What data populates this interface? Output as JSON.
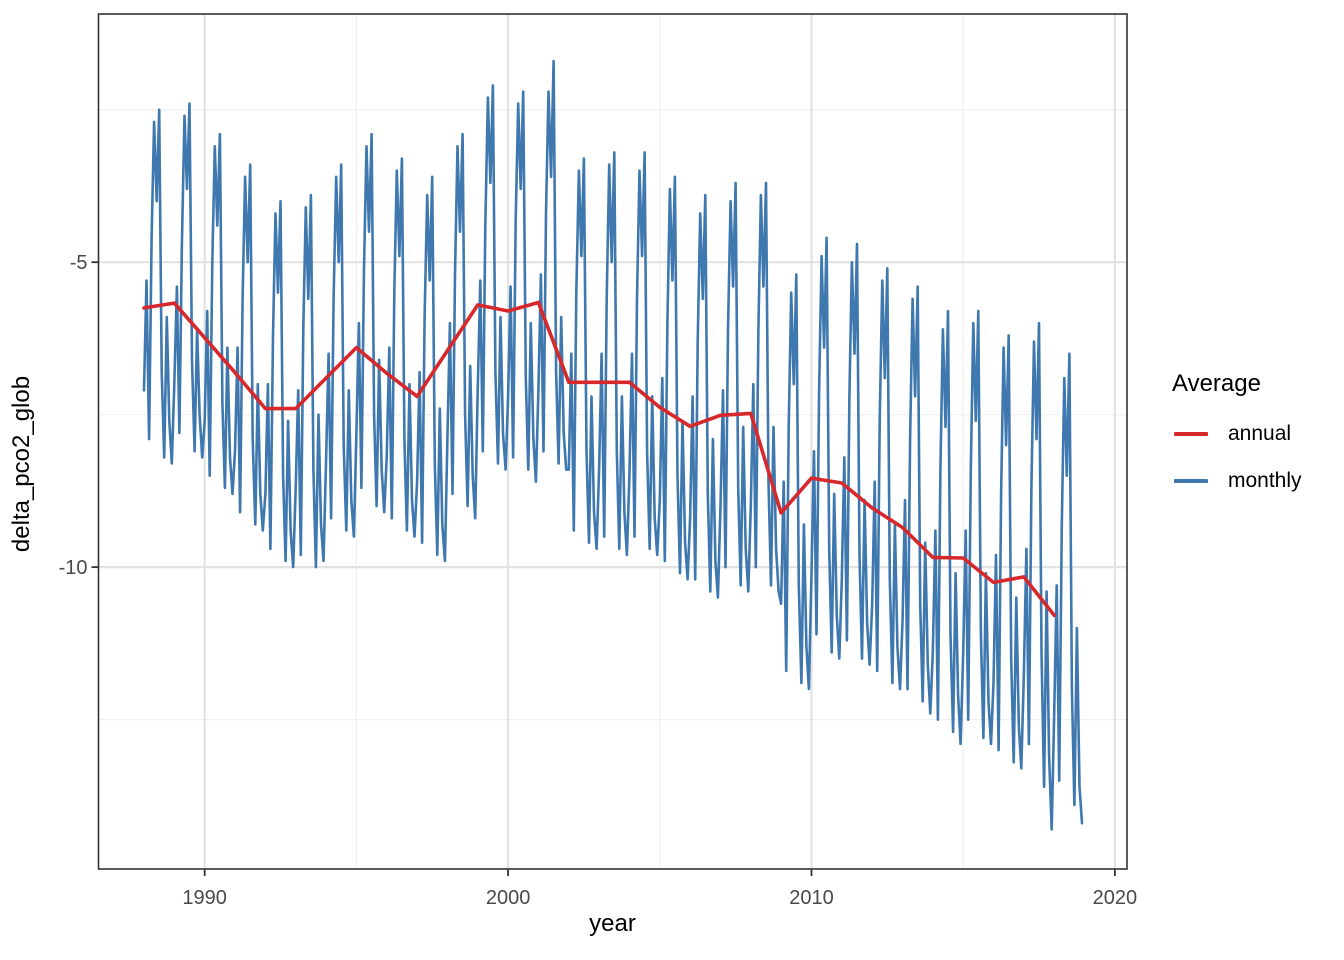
{
  "figure_type": "ggplot-line-chart",
  "chart_data": {
    "type": "line",
    "title": "",
    "xlabel": "year",
    "ylabel": "delta_pco2_glob",
    "x_ticks": [
      1990,
      2000,
      2010,
      2020
    ],
    "y_ticks": [
      -5,
      -10
    ],
    "xlim": [
      1986.5,
      2020.4
    ],
    "ylim": [
      -14.95,
      -0.93
    ],
    "grid": "major and minor gridlines, white panel, dark border (theme_bw)",
    "colors": {
      "annual": "#D7282C",
      "monthly": "#3E78AE",
      "grid_major": "#e2e2e2",
      "grid_minor": "#f0f0f0",
      "panel_border": "#333333",
      "tick_text": "#4a4a4a"
    },
    "legend": {
      "title": "Average",
      "position": "right",
      "entries": [
        {
          "label": "annual",
          "color": "#D7282C"
        },
        {
          "label": "monthly",
          "color": "#3E78AE"
        }
      ]
    },
    "series": [
      {
        "name": "annual",
        "color": "#D7282C",
        "x_start": 1988,
        "x_step": 1,
        "values": [
          -5.75,
          -5.67,
          -6.24,
          -6.81,
          -7.4,
          -7.4,
          -6.9,
          -6.4,
          -6.82,
          -7.2,
          -6.45,
          -5.7,
          -5.8,
          -5.66,
          -6.97,
          -6.97,
          -6.97,
          -7.38,
          -7.69,
          -7.51,
          -7.48,
          -9.11,
          -8.54,
          -8.62,
          -9.03,
          -9.35,
          -9.84,
          -9.85,
          -10.25,
          -10.16,
          -10.79
        ]
      },
      {
        "name": "monthly",
        "color": "#3E78AE",
        "x_start": 1988.0,
        "x_step": 0.0833333,
        "by_year": [
          {
            "year": 1988,
            "values": [
              -7.1,
              -5.3,
              -7.9,
              -4.6,
              -2.7,
              -4.0,
              -2.5,
              -6.8,
              -8.2,
              -5.9,
              -7.6,
              -8.3
            ]
          },
          {
            "year": 1989,
            "values": [
              -7.0,
              -5.4,
              -7.8,
              -4.7,
              -2.6,
              -3.8,
              -2.4,
              -6.6,
              -8.1,
              -6.1,
              -7.5,
              -8.2
            ]
          },
          {
            "year": 1990,
            "values": [
              -7.6,
              -5.8,
              -8.5,
              -5.0,
              -3.1,
              -4.4,
              -2.9,
              -7.3,
              -8.7,
              -6.4,
              -8.2,
              -8.8
            ]
          },
          {
            "year": 1991,
            "values": [
              -8.1,
              -6.4,
              -9.1,
              -5.6,
              -3.6,
              -5.0,
              -3.4,
              -7.9,
              -9.3,
              -7.0,
              -8.8,
              -9.4
            ]
          },
          {
            "year": 1992,
            "values": [
              -8.8,
              -7.0,
              -9.7,
              -6.2,
              -4.2,
              -5.5,
              -4.0,
              -8.5,
              -9.9,
              -7.6,
              -9.4,
              -10.0
            ]
          },
          {
            "year": 1993,
            "values": [
              -8.7,
              -7.1,
              -9.8,
              -6.1,
              -4.1,
              -5.6,
              -3.9,
              -8.4,
              -10.0,
              -7.5,
              -9.3,
              -9.9
            ]
          },
          {
            "year": 1994,
            "values": [
              -8.3,
              -6.5,
              -9.2,
              -5.6,
              -3.6,
              -5.0,
              -3.4,
              -8.0,
              -9.4,
              -7.1,
              -8.9,
              -9.5
            ]
          },
          {
            "year": 1995,
            "values": [
              -7.8,
              -6.0,
              -8.7,
              -5.1,
              -3.1,
              -4.5,
              -2.9,
              -7.5,
              -9.0,
              -6.6,
              -8.4,
              -9.1
            ]
          },
          {
            "year": 1996,
            "values": [
              -8.2,
              -6.4,
              -9.2,
              -5.5,
              -3.5,
              -4.9,
              -3.3,
              -7.9,
              -9.4,
              -7.0,
              -8.9,
              -9.5
            ]
          },
          {
            "year": 1997,
            "values": [
              -8.6,
              -6.8,
              -9.6,
              -5.9,
              -3.9,
              -5.3,
              -3.6,
              -8.3,
              -9.8,
              -7.4,
              -9.3,
              -9.9
            ]
          },
          {
            "year": 1998,
            "values": [
              -7.9,
              -6.0,
              -8.8,
              -5.2,
              -3.1,
              -4.5,
              -2.9,
              -7.5,
              -9.0,
              -6.7,
              -8.5,
              -9.2
            ]
          },
          {
            "year": 1999,
            "values": [
              -7.1,
              -5.3,
              -8.1,
              -4.4,
              -2.3,
              -3.7,
              -2.1,
              -6.8,
              -8.3,
              -5.9,
              -7.8,
              -8.4
            ]
          },
          {
            "year": 2000,
            "values": [
              -7.2,
              -5.4,
              -8.2,
              -4.3,
              -2.4,
              -3.8,
              -2.2,
              -6.9,
              -8.4,
              -6.0,
              -7.9,
              -8.6
            ]
          },
          {
            "year": 2001,
            "values": [
              -7.1,
              -5.2,
              -8.1,
              -4.2,
              -2.2,
              -3.6,
              -1.7,
              -6.8,
              -8.3,
              -5.9,
              -7.8,
              -8.4
            ]
          },
          {
            "year": 2002,
            "values": [
              -8.4,
              -6.5,
              -9.4,
              -5.5,
              -3.5,
              -4.9,
              -3.3,
              -8.1,
              -9.6,
              -7.2,
              -9.1,
              -9.7
            ]
          },
          {
            "year": 2003,
            "values": [
              -8.4,
              -6.5,
              -9.5,
              -5.6,
              -3.4,
              -5.0,
              -3.2,
              -8.1,
              -9.7,
              -7.2,
              -9.1,
              -9.8
            ]
          },
          {
            "year": 2004,
            "values": [
              -8.5,
              -6.5,
              -9.5,
              -5.6,
              -3.5,
              -4.9,
              -3.2,
              -8.1,
              -9.7,
              -7.2,
              -9.2,
              -9.8
            ]
          },
          {
            "year": 2005,
            "values": [
              -8.9,
              -6.9,
              -9.9,
              -6.0,
              -3.8,
              -5.3,
              -3.6,
              -8.5,
              -10.1,
              -7.6,
              -9.6,
              -10.2
            ]
          },
          {
            "year": 2006,
            "values": [
              -9.2,
              -7.2,
              -10.2,
              -6.3,
              -4.2,
              -5.6,
              -3.9,
              -8.8,
              -10.4,
              -7.9,
              -9.9,
              -10.5
            ]
          },
          {
            "year": 2007,
            "values": [
              -9.0,
              -7.1,
              -10.0,
              -6.1,
              -4.0,
              -5.4,
              -3.7,
              -8.7,
              -10.3,
              -7.7,
              -9.7,
              -10.4
            ]
          },
          {
            "year": 2008,
            "values": [
              -9.0,
              -7.0,
              -10.0,
              -6.1,
              -3.9,
              -5.4,
              -3.7,
              -8.6,
              -10.3,
              -7.7,
              -9.7,
              -10.4
            ]
          },
          {
            "year": 2009,
            "values": [
              -10.6,
              -8.6,
              -11.7,
              -7.7,
              -5.5,
              -7.0,
              -5.2,
              -10.3,
              -11.9,
              -9.3,
              -11.3,
              -12.0
            ]
          },
          {
            "year": 2010,
            "values": [
              -10.1,
              -8.1,
              -11.1,
              -7.1,
              -4.9,
              -6.4,
              -4.6,
              -9.7,
              -11.4,
              -8.8,
              -10.8,
              -11.5
            ]
          },
          {
            "year": 2011,
            "values": [
              -10.2,
              -8.2,
              -11.2,
              -7.2,
              -5.0,
              -6.5,
              -4.7,
              -9.8,
              -11.5,
              -8.9,
              -10.9,
              -11.6
            ]
          },
          {
            "year": 2012,
            "values": [
              -10.6,
              -8.6,
              -11.7,
              -7.6,
              -5.3,
              -6.9,
              -5.1,
              -10.2,
              -11.9,
              -9.3,
              -11.3,
              -12.0
            ]
          },
          {
            "year": 2013,
            "values": [
              -10.9,
              -8.9,
              -12.0,
              -7.9,
              -5.6,
              -7.2,
              -5.4,
              -10.6,
              -12.2,
              -9.6,
              -11.6,
              -12.4
            ]
          },
          {
            "year": 2014,
            "values": [
              -11.4,
              -9.4,
              -12.5,
              -8.4,
              -6.1,
              -7.7,
              -5.8,
              -11.1,
              -12.7,
              -10.1,
              -12.1,
              -12.9
            ]
          },
          {
            "year": 2015,
            "values": [
              -11.4,
              -9.4,
              -12.5,
              -8.4,
              -6.0,
              -7.6,
              -5.8,
              -11.1,
              -12.8,
              -10.1,
              -12.2,
              -12.9
            ]
          },
          {
            "year": 2016,
            "values": [
              -11.9,
              -9.8,
              -13.0,
              -8.8,
              -6.4,
              -8.0,
              -6.2,
              -11.5,
              -13.2,
              -10.5,
              -12.6,
              -13.3
            ]
          },
          {
            "year": 2017,
            "values": [
              -11.8,
              -9.7,
              -12.9,
              -8.7,
              -6.3,
              -7.9,
              -6.0,
              -11.4,
              -13.6,
              -10.4,
              -13.1,
              -14.3
            ]
          },
          {
            "year": 2018,
            "values": [
              -12.4,
              -10.3,
              -13.5,
              -9.3,
              -6.9,
              -8.5,
              -6.5,
              -12.0,
              -13.9,
              -11.0,
              -13.6,
              -14.2
            ]
          }
        ]
      }
    ]
  }
}
